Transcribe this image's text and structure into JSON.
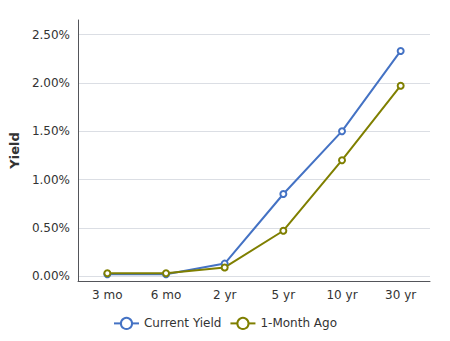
{
  "chart_data": {
    "type": "line",
    "categories": [
      "3 mo",
      "6 mo",
      "2 yr",
      "5 yr",
      "10 yr",
      "30 yr"
    ],
    "series": [
      {
        "name": "Current Yield",
        "color": "#4472C4",
        "values": [
          0.02,
          0.02,
          0.13,
          0.85,
          1.5,
          2.33
        ]
      },
      {
        "name": "1-Month Ago",
        "color": "#7F7F00",
        "values": [
          0.03,
          0.03,
          0.09,
          0.47,
          1.2,
          1.97
        ]
      }
    ],
    "ylabel": "Yield",
    "ylim": [
      -0.05,
      2.65
    ],
    "yticks": [
      {
        "value": 0.0,
        "label": "0.00%"
      },
      {
        "value": 0.5,
        "label": "0.50%"
      },
      {
        "value": 1.0,
        "label": "1.00%"
      },
      {
        "value": 1.5,
        "label": "1.50%"
      },
      {
        "value": 2.0,
        "label": "2.00%"
      },
      {
        "value": 2.5,
        "label": "2.50%"
      }
    ],
    "grid": true,
    "legend": "bottom"
  }
}
